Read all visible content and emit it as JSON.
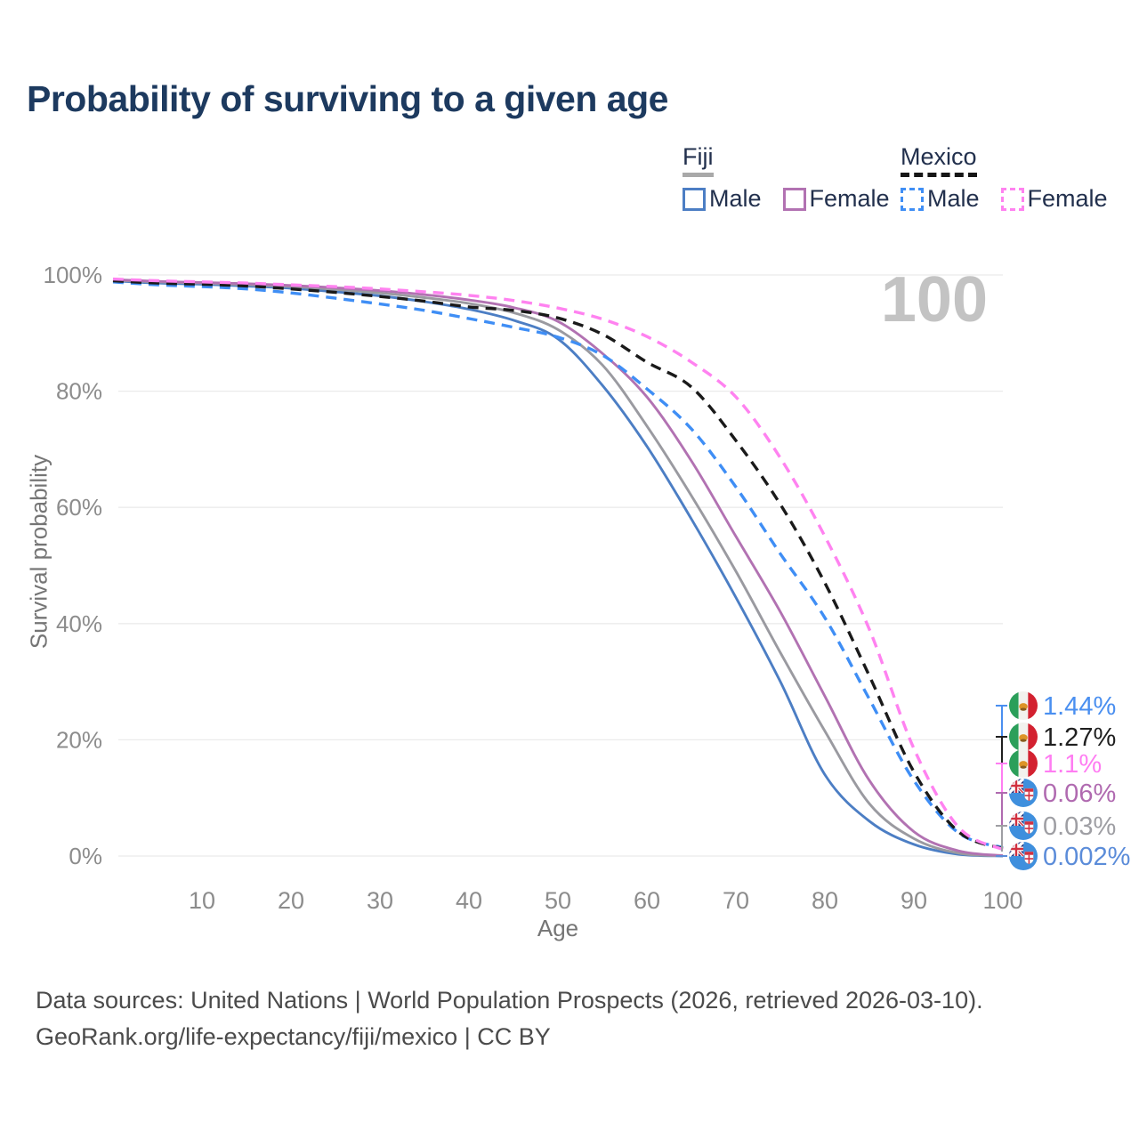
{
  "title": {
    "text": "Probability of surviving to a given age",
    "color": "#1d3a5f"
  },
  "watermark": {
    "text": "100",
    "color": "#c3c3c3"
  },
  "legend": {
    "groups": [
      {
        "label": "Fiji",
        "underline": "solid",
        "underline_color": "#a9a9a9",
        "items": [
          {
            "label": "Male",
            "swatch": "solid",
            "color": "#4c7ec4"
          },
          {
            "label": "Female",
            "swatch": "solid",
            "color": "#b272b2"
          }
        ]
      },
      {
        "label": "Mexico",
        "underline": "dashed",
        "underline_color": "#161616",
        "items": [
          {
            "label": "Male",
            "swatch": "dashed",
            "color": "#3f8ef5"
          },
          {
            "label": "Female",
            "swatch": "dashed",
            "color": "#ff82f0"
          }
        ]
      }
    ]
  },
  "chart_data": {
    "type": "line",
    "title": "Probability of surviving to a given age",
    "xlabel": "Age",
    "ylabel": "Survival probability",
    "xlim": [
      0,
      100
    ],
    "ylim": [
      0,
      100
    ],
    "grid": "horizontal",
    "legend_position": "top-right",
    "x_ticks": [
      10,
      20,
      30,
      40,
      50,
      60,
      70,
      80,
      90,
      100
    ],
    "y_ticks": [
      {
        "value": 0,
        "label": "0%"
      },
      {
        "value": 20,
        "label": "20%"
      },
      {
        "value": 40,
        "label": "40%"
      },
      {
        "value": 60,
        "label": "60%"
      },
      {
        "value": 80,
        "label": "80%"
      },
      {
        "value": 100,
        "label": "100%"
      }
    ],
    "x": [
      0,
      5,
      10,
      15,
      20,
      25,
      30,
      35,
      40,
      45,
      50,
      55,
      60,
      65,
      70,
      75,
      80,
      85,
      90,
      95,
      100
    ],
    "series": [
      {
        "name": "Fiji Male",
        "country": "Fiji",
        "sex": "Male",
        "line": "solid",
        "color": "#4c7ec4",
        "end_label": "0.002%",
        "values": [
          99.0,
          98.6,
          98.4,
          98.1,
          97.7,
          97.1,
          96.4,
          95.4,
          94.1,
          92.2,
          89.0,
          81.0,
          70.5,
          58.0,
          44.5,
          30.0,
          14.0,
          6.0,
          2.0,
          0.3,
          0.002
        ]
      },
      {
        "name": "Fiji (both sexes)",
        "country": "Fiji",
        "sex": "Both",
        "line": "solid",
        "color": "#9a9aa0",
        "end_label": "0.03%",
        "values": [
          99.1,
          98.8,
          98.6,
          98.3,
          98.0,
          97.5,
          96.9,
          96.1,
          95.1,
          93.5,
          90.6,
          84.5,
          74.0,
          62.0,
          49.0,
          35.0,
          21.5,
          9.0,
          3.0,
          0.5,
          0.03
        ]
      },
      {
        "name": "Fiji Female",
        "country": "Fiji",
        "sex": "Female",
        "line": "solid",
        "color": "#b272b2",
        "end_label": "0.06%",
        "values": [
          99.2,
          98.9,
          98.7,
          98.5,
          98.2,
          97.8,
          97.3,
          96.6,
          95.7,
          94.4,
          92.0,
          86.5,
          79.0,
          68.0,
          55.0,
          42.0,
          27.5,
          13.0,
          4.2,
          0.9,
          0.06
        ]
      },
      {
        "name": "Mexico Male",
        "country": "Mexico",
        "sex": "Male",
        "line": "dashed",
        "color": "#3f8ef5",
        "end_label": "1.44%",
        "values": [
          98.8,
          98.3,
          98.0,
          97.6,
          96.9,
          96.0,
          95.0,
          93.9,
          92.5,
          91.0,
          89.3,
          86.2,
          80.4,
          73.5,
          63.5,
          52.0,
          41.0,
          27.0,
          13.0,
          4.0,
          1.44
        ]
      },
      {
        "name": "Mexico (both sexes)",
        "country": "Mexico",
        "sex": "Both",
        "line": "dashed",
        "color": "#1a1a1a",
        "end_label": "1.27%",
        "values": [
          99.0,
          98.6,
          98.4,
          98.1,
          97.6,
          97.0,
          96.3,
          95.5,
          94.5,
          93.9,
          92.6,
          89.8,
          85.0,
          80.7,
          71.5,
          60.5,
          47.0,
          31.0,
          14.5,
          4.2,
          1.27
        ]
      },
      {
        "name": "Mexico Female",
        "country": "Mexico",
        "sex": "Female",
        "line": "dashed",
        "color": "#ff82f0",
        "end_label": "1.1%",
        "values": [
          99.3,
          99.0,
          98.8,
          98.6,
          98.3,
          98.0,
          97.6,
          97.1,
          96.5,
          95.6,
          94.3,
          92.4,
          89.4,
          85.0,
          79.0,
          68.5,
          55.0,
          39.0,
          18.5,
          5.0,
          1.1
        ]
      }
    ],
    "end_labels": [
      {
        "value": "1.44%",
        "series": "Mexico Male",
        "flag": "mexico",
        "color": "#4a8ff0"
      },
      {
        "value": "1.27%",
        "series": "Mexico (both sexes)",
        "flag": "mexico",
        "color": "#1f1f1f"
      },
      {
        "value": "1.1%",
        "series": "Mexico Female",
        "flag": "mexico",
        "color": "#ff7df2"
      },
      {
        "value": "0.06%",
        "series": "Fiji Female",
        "flag": "fiji",
        "color": "#b06ab0"
      },
      {
        "value": "0.03%",
        "series": "Fiji (both sexes)",
        "flag": "fiji",
        "color": "#9e9ea3"
      },
      {
        "value": "0.002%",
        "series": "Fiji Male",
        "flag": "fiji",
        "color": "#5b8cd9"
      }
    ]
  },
  "footer": {
    "line1": "Data sources: United Nations | World Population Prospects (2026, retrieved 2026-03-10).",
    "line2": "GeoRank.org/life-expectancy/fiji/mexico | CC BY"
  }
}
